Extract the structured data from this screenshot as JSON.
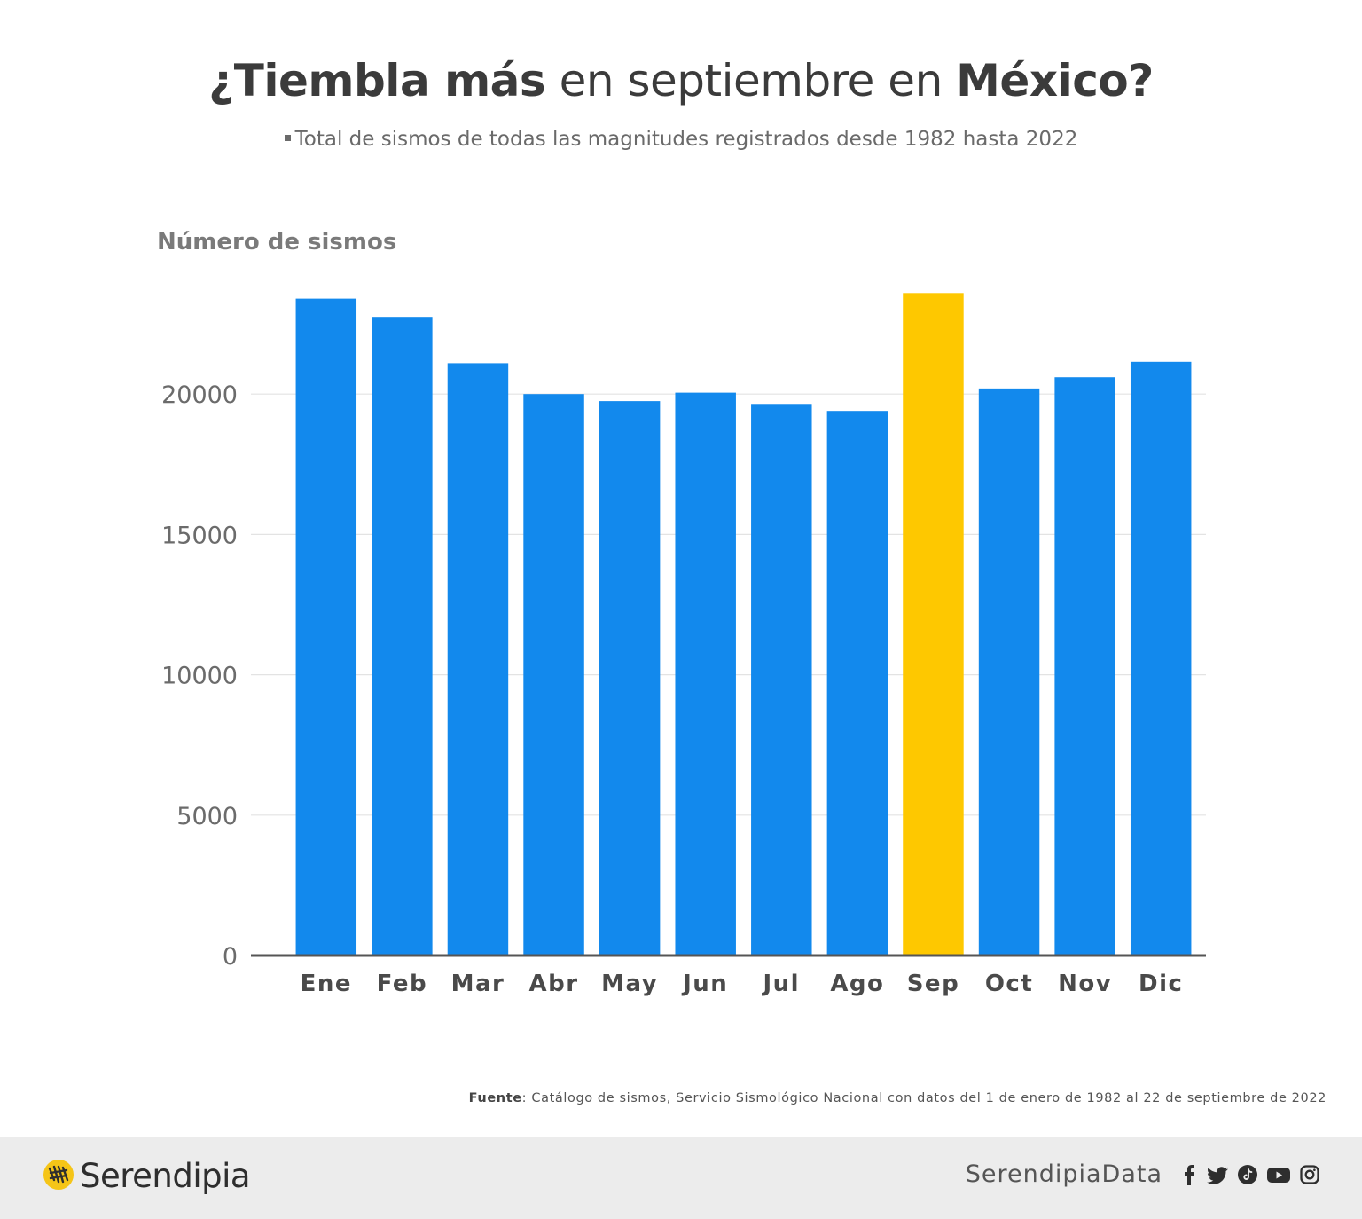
{
  "header": {
    "title_a": "¿Tiembla más",
    "title_b": "en septiembre en",
    "title_c": "México?",
    "subtitle": "Total de sismos de todas las magnitudes registrados desde 1982 hasta 2022"
  },
  "chart_data": {
    "type": "bar",
    "title": "¿Tiembla más en septiembre en México?",
    "subtitle": "Total de sismos de todas las magnitudes registrados desde 1982 hasta 2022",
    "ylabel": "Número de sismos",
    "xlabel": "",
    "categories": [
      "Ene",
      "Feb",
      "Mar",
      "Abr",
      "May",
      "Jun",
      "Jul",
      "Ago",
      "Sep",
      "Oct",
      "Nov",
      "Dic"
    ],
    "values": [
      23400,
      22750,
      21100,
      20000,
      19750,
      20050,
      19650,
      19400,
      23600,
      20200,
      20600,
      21150
    ],
    "highlight_index": 8,
    "colors": {
      "bar": "#1289ed",
      "highlight": "#fec800",
      "grid": "#e3e3e3",
      "axis": "#555555"
    },
    "ylim": [
      0,
      25000
    ],
    "yticks": [
      0,
      5000,
      10000,
      15000,
      20000
    ],
    "grid": true
  },
  "source": {
    "label": "Fuente",
    "text": ": Catálogo de sismos, Servicio Sismológico Nacional con datos del 1 de enero de 1982 al 22 de septiembre de 2022"
  },
  "footer": {
    "brand": "Serendipia",
    "handle": "SerendipiaData",
    "icons": [
      "facebook-icon",
      "twitter-icon",
      "tiktok-icon",
      "youtube-icon",
      "instagram-icon"
    ]
  }
}
